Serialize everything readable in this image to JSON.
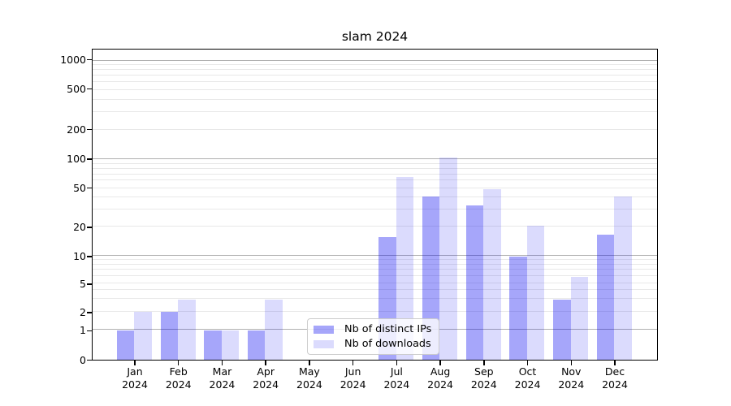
{
  "title": "slam 2024",
  "chart_data": {
    "type": "bar",
    "title": "slam 2024",
    "categories": [
      "Jan 2024",
      "Feb 2024",
      "Mar 2024",
      "Apr 2024",
      "May 2024",
      "Jun 2024",
      "Jul 2024",
      "Aug 2024",
      "Sep 2024",
      "Oct 2024",
      "Nov 2024",
      "Dec 2024"
    ],
    "series": [
      {
        "name": "Nb of distinct IPs",
        "color": "rgba(0,0,240,0.35)",
        "values": [
          1,
          2,
          1,
          1,
          0,
          0,
          16,
          42,
          34,
          10,
          3,
          17
        ]
      },
      {
        "name": "Nb of downloads",
        "color": "rgba(0,0,240,0.14)",
        "values": [
          2,
          3,
          1,
          3,
          0,
          0,
          67,
          107,
          50,
          21,
          6,
          42
        ]
      }
    ],
    "xlabel": "",
    "ylabel": "",
    "yscale": "symlog",
    "ylim": [
      0,
      1230
    ],
    "yticks": [
      0,
      1,
      2,
      5,
      10,
      20,
      50,
      100,
      200,
      500,
      1000
    ],
    "ytick_labels": [
      "0",
      "1",
      "2",
      "5",
      "10",
      "20",
      "50",
      "100",
      "200",
      "500",
      "1000"
    ],
    "major_gridlines": [
      1,
      10,
      100,
      1000
    ],
    "minor_gridlines": [
      2,
      3,
      4,
      5,
      6,
      7,
      8,
      9,
      20,
      30,
      40,
      50,
      60,
      70,
      80,
      90,
      200,
      300,
      400,
      500,
      600,
      700,
      800,
      900
    ],
    "grid": "horizontal major+minor",
    "legend_position": "lower center",
    "scale_anchors": [
      [
        0,
        0
      ],
      [
        1,
        0.0939
      ],
      [
        2,
        0.1525
      ],
      [
        5,
        0.2438
      ],
      [
        10,
        0.3325
      ],
      [
        20,
        0.4263
      ],
      [
        50,
        0.5515
      ],
      [
        100,
        0.6441
      ],
      [
        200,
        0.7392
      ],
      [
        500,
        0.8696
      ],
      [
        1000,
        0.9635
      ]
    ]
  },
  "legend": {
    "items": [
      {
        "label": "Nb of distinct IPs"
      },
      {
        "label": "Nb of downloads"
      }
    ]
  },
  "colors": {
    "bar_distinct_ips": "rgba(0,0,240,0.35)",
    "bar_downloads": "rgba(0,0,240,0.14)",
    "major_grid": "#b0b0b0",
    "minor_grid": "#e8e8e8",
    "spine": "#000000",
    "legend_border": "#cccccc"
  }
}
